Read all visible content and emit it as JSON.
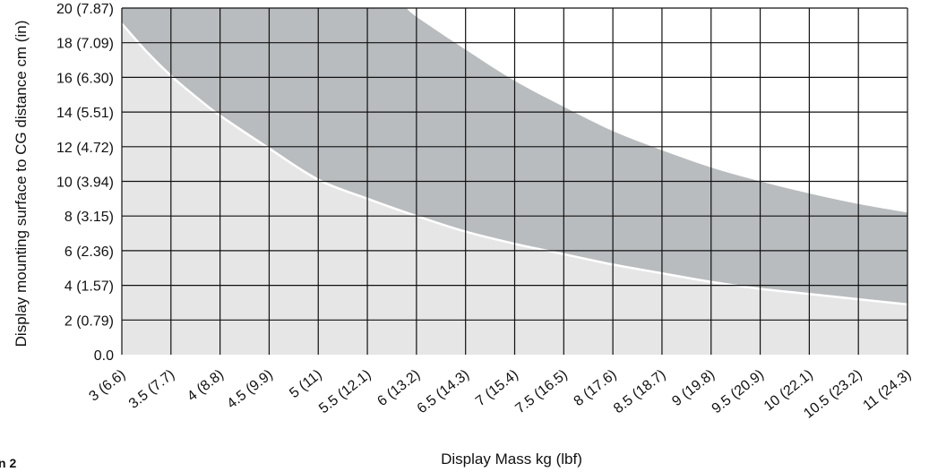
{
  "chart_data": {
    "type": "area",
    "title": "",
    "xlabel": "Display Mass kg (lbf)",
    "ylabel": "Display mounting surface to CG distance cm (in)",
    "xlim": [
      3,
      11
    ],
    "ylim": [
      0,
      20
    ],
    "x_tick_values": [
      3,
      3.5,
      4,
      4.5,
      5,
      5.5,
      6,
      6.5,
      7,
      7.5,
      8,
      8.5,
      9,
      9.5,
      10,
      10.5,
      11
    ],
    "x_tick_labels": [
      "3 (6.6)",
      "3.5 (7.7)",
      "4 (8.8)",
      "4.5 (9.9)",
      "5 (11)",
      "5.5 (12.1)",
      "6 (13.2)",
      "6.5 (14.3)",
      "7 (15.4)",
      "7.5 (16.5)",
      "8 (17.6)",
      "8.5 (18.7)",
      "9 (19.8)",
      "9.5 (20.9)",
      "10 (22.1)",
      "10.5 (23.2)",
      "11 (24.3)"
    ],
    "y_tick_values": [
      0,
      2,
      4,
      6,
      8,
      10,
      12,
      14,
      16,
      18,
      20
    ],
    "y_tick_labels": [
      "0.0",
      "2 (0.79)",
      "4 (1.57)",
      "6 (2.36)",
      "8 (3.15)",
      "10 (3.94)",
      "12 (4.72)",
      "14 (5.51)",
      "16 (6.30)",
      "18 (7.09)",
      "20 (7.87)"
    ],
    "grid": true,
    "series": [
      {
        "x": [
          3,
          3.25,
          3.5,
          3.75,
          4,
          4.5,
          5,
          5.5,
          6,
          6.5,
          7,
          7.5,
          8,
          8.5,
          9,
          9.5,
          10,
          10.5,
          11
        ],
        "values": [
          19.1,
          17.5,
          16.1,
          14.9,
          13.8,
          11.9,
          10.1,
          9.0,
          8.0,
          7.1,
          6.4,
          5.8,
          5.2,
          4.7,
          4.2,
          3.8,
          3.5,
          3.2,
          2.9
        ]
      },
      {
        "x": [
          5.9,
          6.0,
          6.5,
          7.0,
          7.5,
          8.0,
          8.5,
          9.0,
          9.5,
          10.0,
          10.5,
          11.0
        ],
        "values": [
          20.0,
          19.5,
          17.6,
          15.8,
          14.3,
          12.9,
          11.8,
          10.8,
          10.0,
          9.3,
          8.7,
          8.2
        ]
      }
    ],
    "colors": {
      "lower_region": "#e6e6e6",
      "upper_region": "#b9bcbe",
      "white_band": "#ffffff",
      "grid": "#111111"
    }
  },
  "corner_note": "n 2"
}
